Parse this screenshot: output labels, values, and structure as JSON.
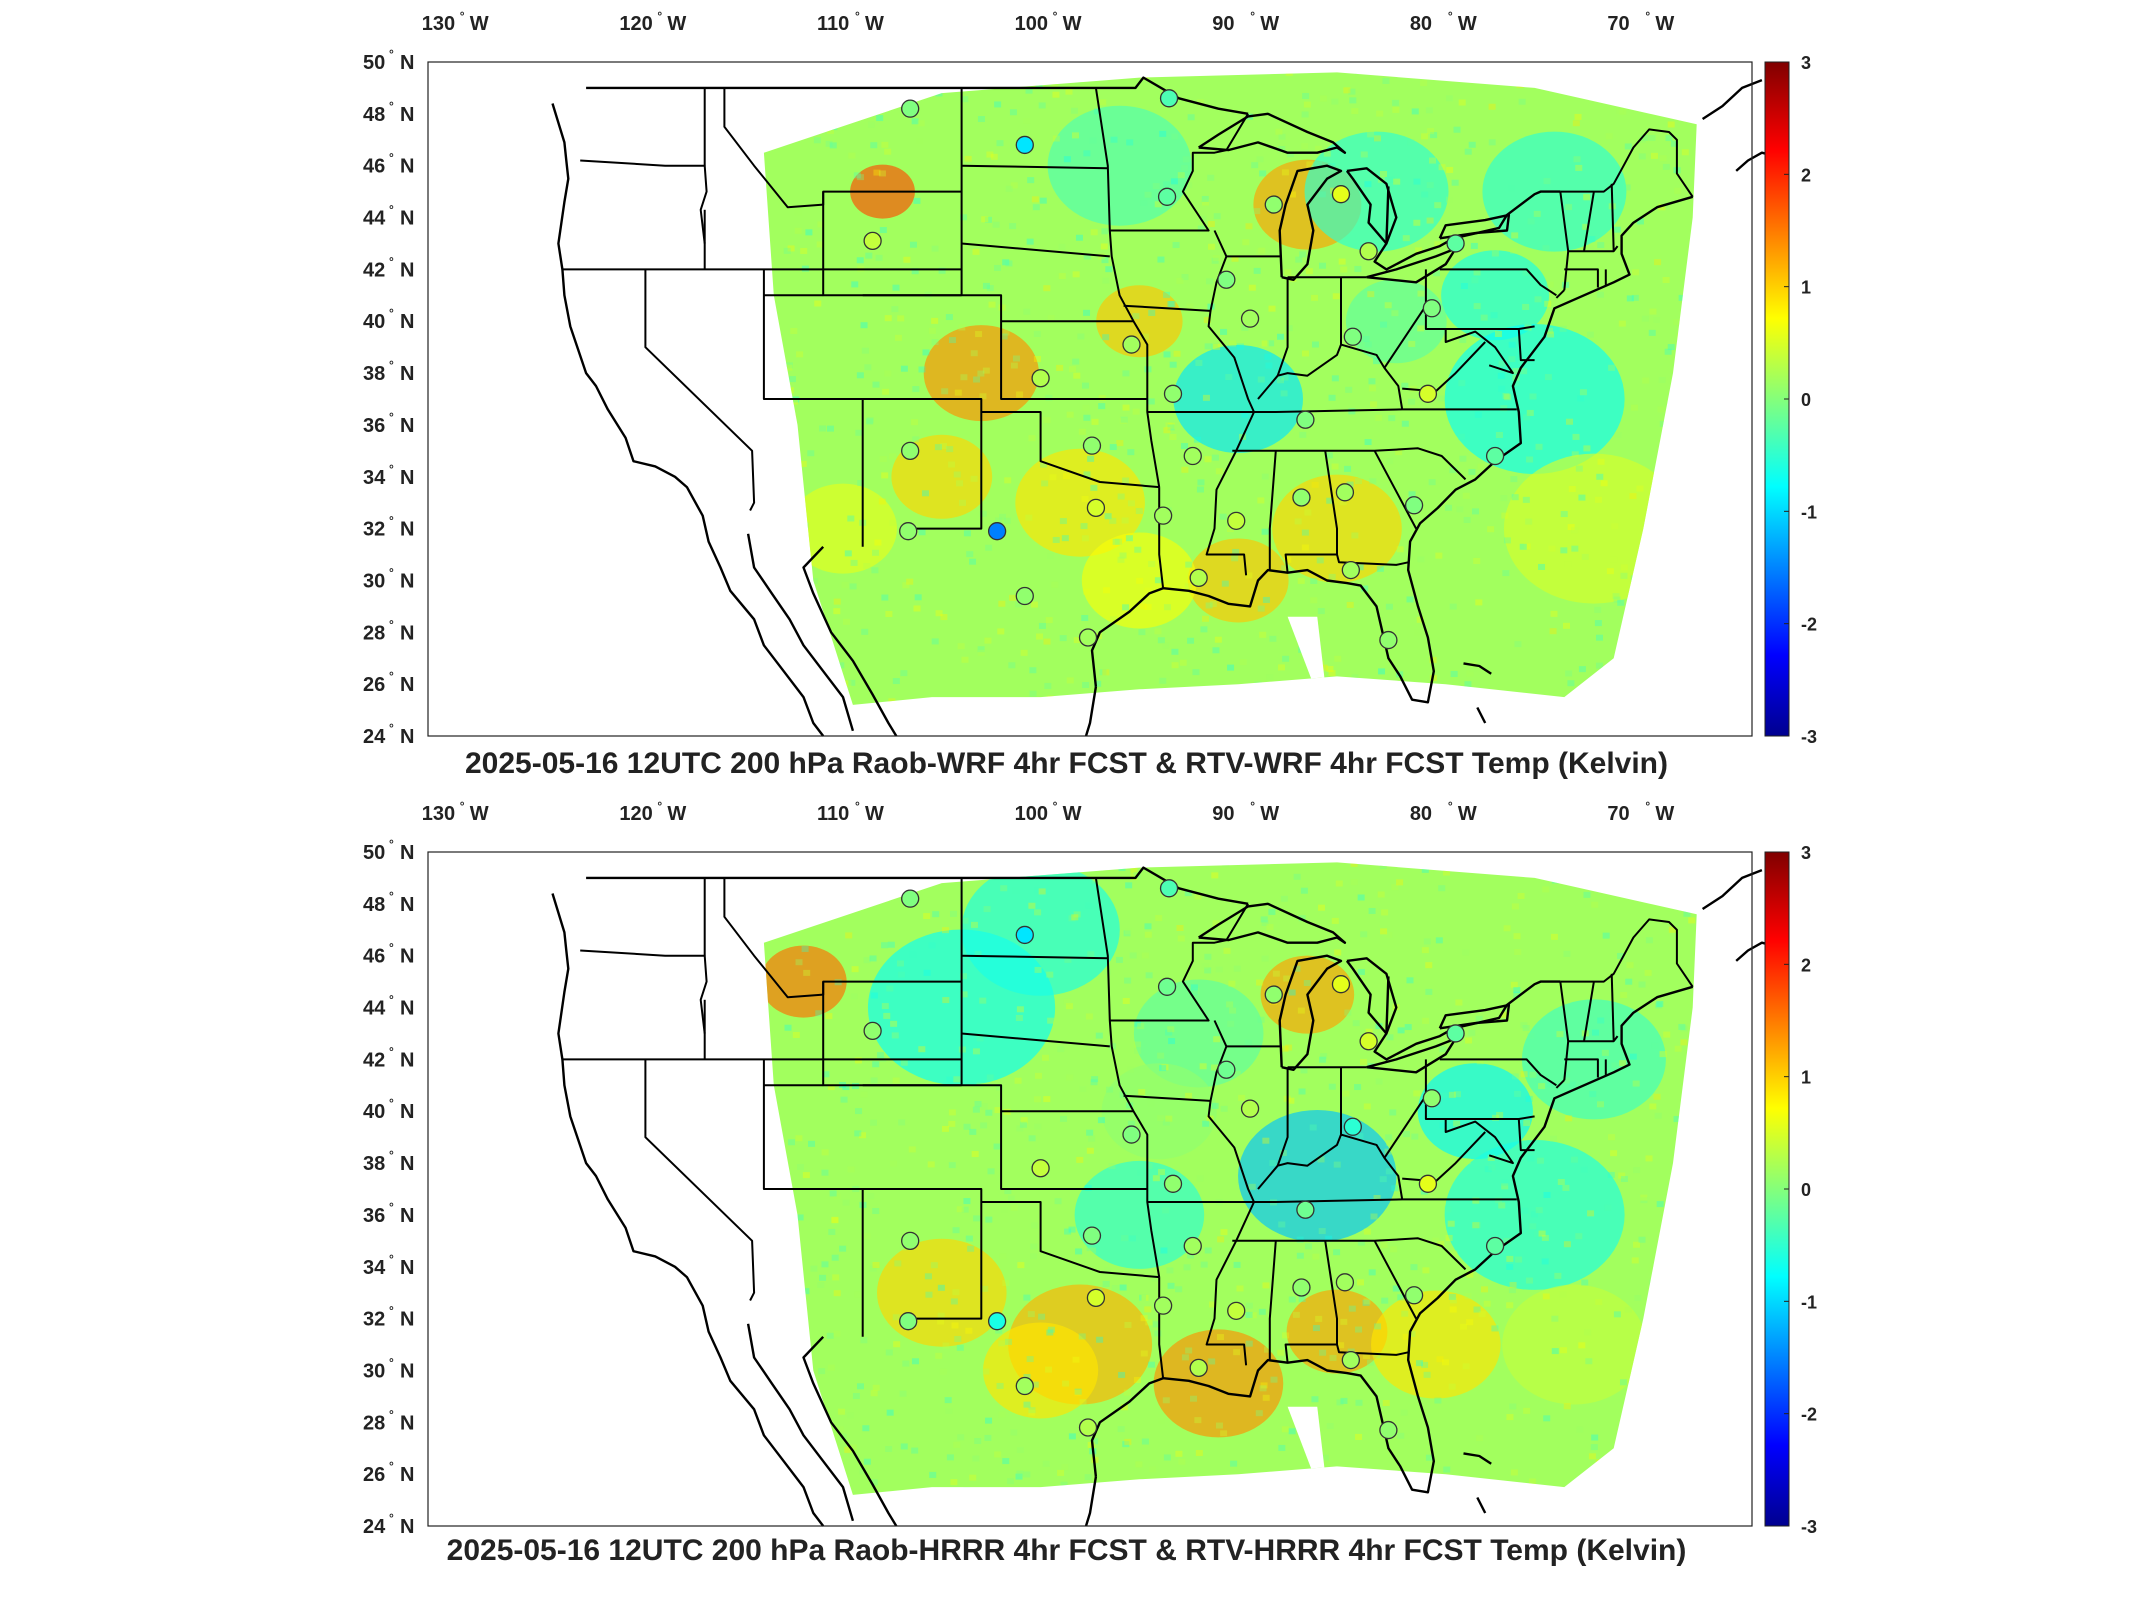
{
  "panels": [
    {
      "title": "2025-05-16 12UTC 200 hPa Raob-WRF 4hr FCST & RTV-WRF 4hr FCST Temp (Kelvin)",
      "stations": [
        {
          "lon": -106.6,
          "lat": 48.2,
          "value": 0.0
        },
        {
          "lon": -100.8,
          "lat": 46.8,
          "value": -0.9
        },
        {
          "lon": -93.5,
          "lat": 48.6,
          "value": -0.3
        },
        {
          "lon": -93.6,
          "lat": 44.8,
          "value": -0.2
        },
        {
          "lon": -88.2,
          "lat": 44.5,
          "value": 0.1
        },
        {
          "lon": -84.8,
          "lat": 44.9,
          "value": 0.6
        },
        {
          "lon": -83.4,
          "lat": 42.7,
          "value": 0.3
        },
        {
          "lon": -79.0,
          "lat": 43.0,
          "value": -0.2
        },
        {
          "lon": -108.5,
          "lat": 43.1,
          "value": 0.4
        },
        {
          "lon": -90.6,
          "lat": 41.6,
          "value": 0.0
        },
        {
          "lon": -89.4,
          "lat": 40.1,
          "value": 0.2
        },
        {
          "lon": -84.2,
          "lat": 39.4,
          "value": 0.0
        },
        {
          "lon": -80.2,
          "lat": 40.5,
          "value": 0.0
        },
        {
          "lon": -95.4,
          "lat": 39.1,
          "value": 0.2
        },
        {
          "lon": -100.0,
          "lat": 37.8,
          "value": 0.3
        },
        {
          "lon": -93.3,
          "lat": 37.2,
          "value": 0.1
        },
        {
          "lon": -86.6,
          "lat": 36.2,
          "value": 0.0
        },
        {
          "lon": -80.4,
          "lat": 37.2,
          "value": 0.5
        },
        {
          "lon": -106.6,
          "lat": 35.0,
          "value": 0.1
        },
        {
          "lon": -97.4,
          "lat": 35.2,
          "value": 0.1
        },
        {
          "lon": -92.3,
          "lat": 34.8,
          "value": 0.2
        },
        {
          "lon": -77.0,
          "lat": 34.8,
          "value": -0.2
        },
        {
          "lon": -97.2,
          "lat": 32.8,
          "value": 0.5
        },
        {
          "lon": -93.8,
          "lat": 32.5,
          "value": 0.2
        },
        {
          "lon": -90.1,
          "lat": 32.3,
          "value": 0.4
        },
        {
          "lon": -86.8,
          "lat": 33.2,
          "value": 0.1
        },
        {
          "lon": -84.6,
          "lat": 33.4,
          "value": 0.2
        },
        {
          "lon": -81.1,
          "lat": 32.9,
          "value": 0.0
        },
        {
          "lon": -106.7,
          "lat": 31.9,
          "value": 0.1
        },
        {
          "lon": -102.2,
          "lat": 31.9,
          "value": -1.5
        },
        {
          "lon": -92.0,
          "lat": 30.1,
          "value": 0.3
        },
        {
          "lon": -100.8,
          "lat": 29.4,
          "value": 0.1
        },
        {
          "lon": -97.6,
          "lat": 27.8,
          "value": 0.2
        },
        {
          "lon": -84.3,
          "lat": 30.4,
          "value": 0.2
        },
        {
          "lon": -82.4,
          "lat": 27.7,
          "value": 0.1
        }
      ]
    },
    {
      "title": "2025-05-16 12UTC 200 hPa Raob-HRRR 4hr FCST & RTV-HRRR 4hr FCST Temp (Kelvin)",
      "stations": [
        {
          "lon": -106.6,
          "lat": 48.2,
          "value": 0.0
        },
        {
          "lon": -100.8,
          "lat": 46.8,
          "value": -0.9
        },
        {
          "lon": -93.5,
          "lat": 48.6,
          "value": -0.3
        },
        {
          "lon": -93.6,
          "lat": 44.8,
          "value": -0.1
        },
        {
          "lon": -88.2,
          "lat": 44.5,
          "value": 0.1
        },
        {
          "lon": -84.8,
          "lat": 44.9,
          "value": 0.6
        },
        {
          "lon": -83.4,
          "lat": 42.7,
          "value": 0.5
        },
        {
          "lon": -79.0,
          "lat": 43.0,
          "value": -0.2
        },
        {
          "lon": -108.5,
          "lat": 43.1,
          "value": 0.1
        },
        {
          "lon": -90.6,
          "lat": 41.6,
          "value": -0.1
        },
        {
          "lon": -89.4,
          "lat": 40.1,
          "value": 0.3
        },
        {
          "lon": -84.2,
          "lat": 39.4,
          "value": -0.5
        },
        {
          "lon": -80.2,
          "lat": 40.5,
          "value": 0.1
        },
        {
          "lon": -95.4,
          "lat": 39.1,
          "value": 0.0
        },
        {
          "lon": -100.0,
          "lat": 37.8,
          "value": 0.4
        },
        {
          "lon": -93.3,
          "lat": 37.2,
          "value": 0.1
        },
        {
          "lon": -86.6,
          "lat": 36.2,
          "value": -0.1
        },
        {
          "lon": -80.4,
          "lat": 37.2,
          "value": 0.6
        },
        {
          "lon": -106.6,
          "lat": 35.0,
          "value": 0.1
        },
        {
          "lon": -97.4,
          "lat": 35.2,
          "value": 0.0
        },
        {
          "lon": -92.3,
          "lat": 34.8,
          "value": 0.2
        },
        {
          "lon": -77.0,
          "lat": 34.8,
          "value": -0.2
        },
        {
          "lon": -97.2,
          "lat": 32.8,
          "value": 0.5
        },
        {
          "lon": -93.8,
          "lat": 32.5,
          "value": 0.2
        },
        {
          "lon": -90.1,
          "lat": 32.3,
          "value": 0.4
        },
        {
          "lon": -86.8,
          "lat": 33.2,
          "value": 0.1
        },
        {
          "lon": -84.6,
          "lat": 33.4,
          "value": 0.2
        },
        {
          "lon": -81.1,
          "lat": 32.9,
          "value": 0.1
        },
        {
          "lon": -106.7,
          "lat": 31.9,
          "value": 0.0
        },
        {
          "lon": -102.2,
          "lat": 31.9,
          "value": -0.6
        },
        {
          "lon": -92.0,
          "lat": 30.1,
          "value": 0.3
        },
        {
          "lon": -100.8,
          "lat": 29.4,
          "value": 0.2
        },
        {
          "lon": -97.6,
          "lat": 27.8,
          "value": 0.3
        },
        {
          "lon": -84.3,
          "lat": 30.4,
          "value": 0.2
        },
        {
          "lon": -82.4,
          "lat": 27.7,
          "value": 0.1
        }
      ]
    }
  ],
  "axes": {
    "lon_ticks": [
      "130",
      "120",
      "110",
      "100",
      "90",
      "80",
      "70"
    ],
    "lon_suffix": "W",
    "lat_ticks": [
      "50",
      "48",
      "46",
      "44",
      "42",
      "40",
      "38",
      "36",
      "34",
      "32",
      "30",
      "28",
      "26",
      "24"
    ],
    "lat_suffix": "N",
    "deg_mark": "°",
    "lon_range": [
      -131,
      -64
    ],
    "lat_range": [
      24,
      50
    ]
  },
  "colorbar": {
    "range": [
      -3,
      3
    ],
    "ticks": [
      "3",
      "2",
      "1",
      "0",
      "-1",
      "-2",
      "-3"
    ],
    "colormap": "jet",
    "stops": [
      "#00008f",
      "#0000ff",
      "#00ffff",
      "#ffff00",
      "#ff0000",
      "#800000"
    ]
  }
}
